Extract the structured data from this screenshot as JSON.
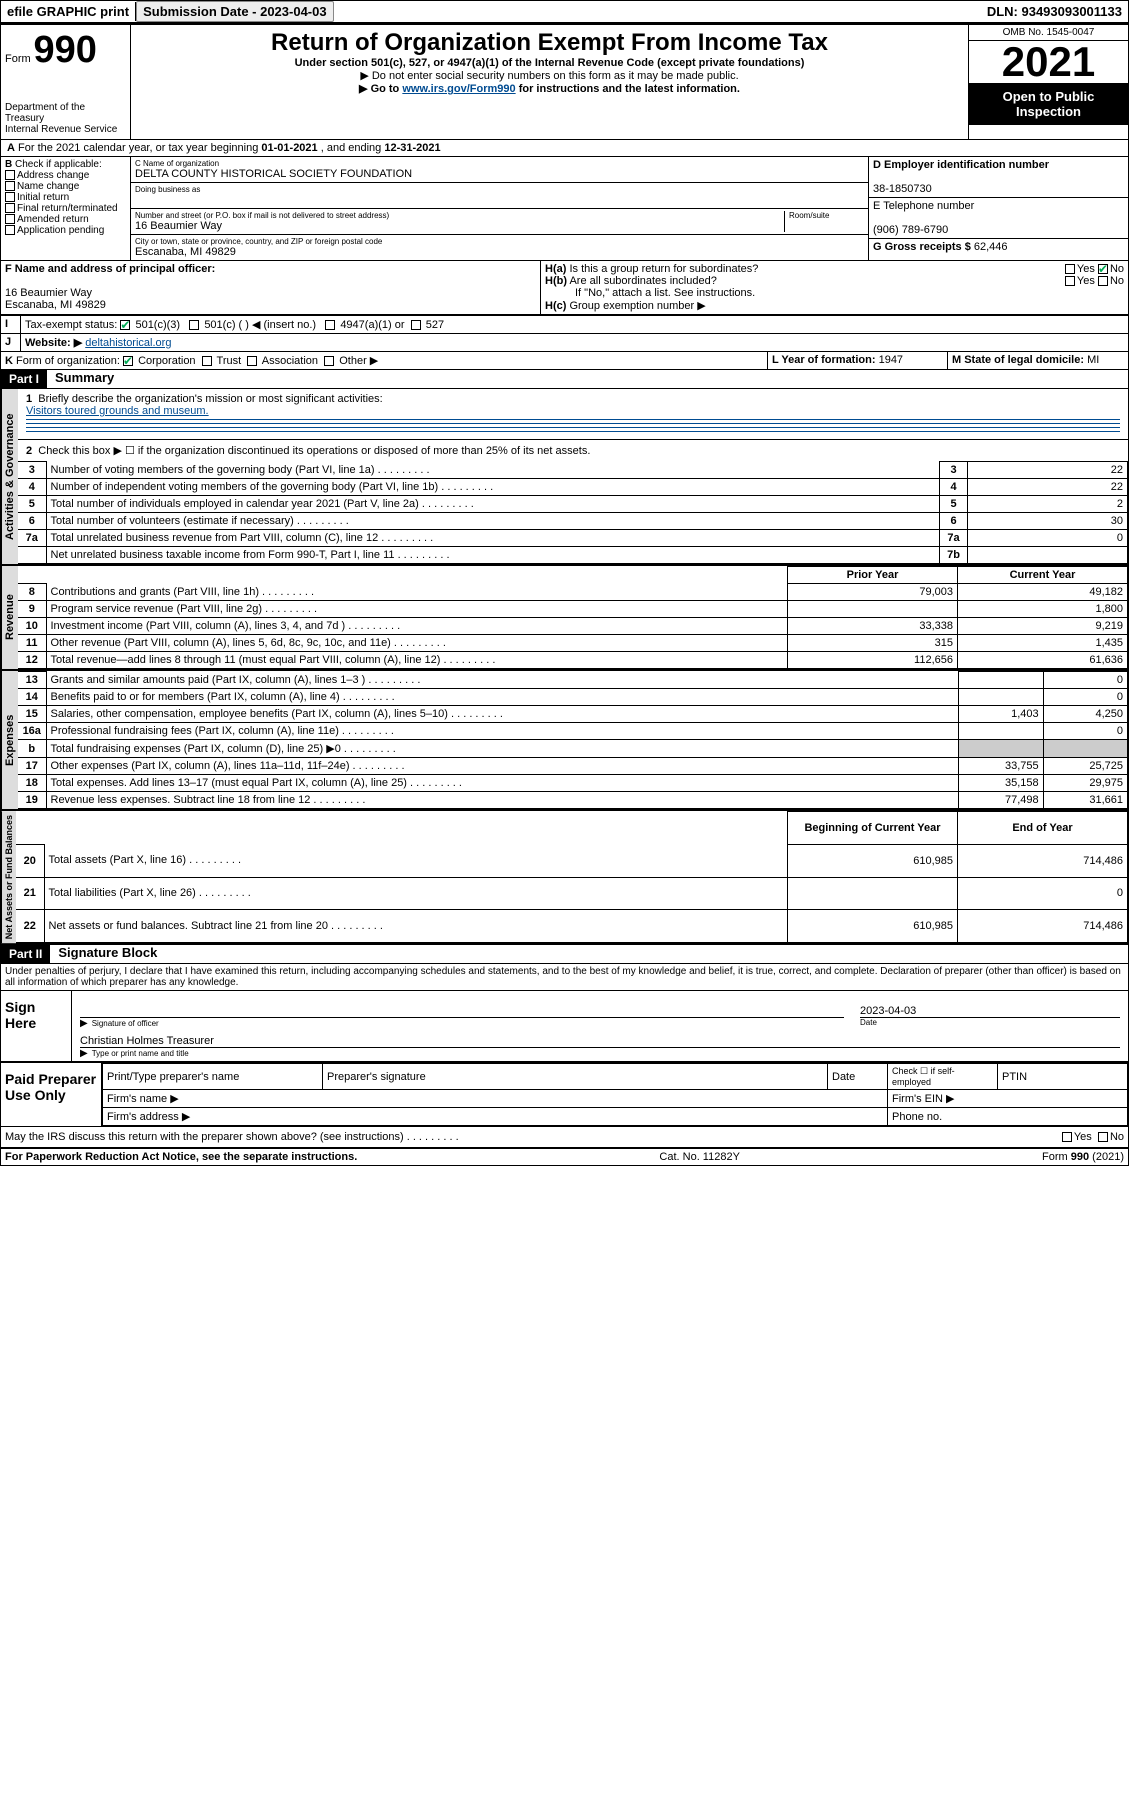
{
  "topbar": {
    "efile": "efile GRAPHIC print",
    "sub_label": "Submission Date - 2023-04-03",
    "dln": "DLN: 93493093001133"
  },
  "header": {
    "form_prefix": "Form",
    "form_no": "990",
    "dept": "Department of the Treasury",
    "irs": "Internal Revenue Service",
    "title": "Return of Organization Exempt From Income Tax",
    "subtitle": "Under section 501(c), 527, or 4947(a)(1) of the Internal Revenue Code (except private foundations)",
    "instr1": "▶ Do not enter social security numbers on this form as it may be made public.",
    "instr2_pre": "▶ Go to ",
    "instr2_link": "www.irs.gov/Form990",
    "instr2_post": " for instructions and the latest information.",
    "omb": "OMB No. 1545-0047",
    "year": "2021",
    "open": "Open to Public Inspection"
  },
  "rowA": {
    "text_pre": "For the 2021 calendar year, or tax year beginning ",
    "begin": "01-01-2021",
    "mid": " , and ending ",
    "end": "12-31-2021"
  },
  "boxB": {
    "label": "Check if applicable:",
    "opts": [
      "Address change",
      "Name change",
      "Initial return",
      "Final return/terminated",
      "Amended return",
      "Application pending"
    ]
  },
  "boxC": {
    "name_label": "C Name of organization",
    "name": "DELTA COUNTY HISTORICAL SOCIETY FOUNDATION",
    "dba_label": "Doing business as",
    "addr_label": "Number and street (or P.O. box if mail is not delivered to street address)",
    "room_label": "Room/suite",
    "street": "16 Beaumier Way",
    "city_label": "City or town, state or province, country, and ZIP or foreign postal code",
    "city": "Escanaba, MI  49829"
  },
  "boxDE": {
    "d_label": "D Employer identification number",
    "ein": "38-1850730",
    "e_label": "E Telephone number",
    "phone": "(906) 789-6790",
    "g_label": "G Gross receipts $",
    "gross": "62,446"
  },
  "rowF": {
    "label": "F Name and address of principal officer:",
    "addr1": "16 Beaumier Way",
    "addr2": "Escanaba, MI  49829"
  },
  "rowH": {
    "ha": "Is this a group return for subordinates?",
    "hb": "Are all subordinates included?",
    "hb_note": "If \"No,\" attach a list. See instructions.",
    "hc": "Group exemption number ▶",
    "yes": "Yes",
    "no": "No"
  },
  "rowI": {
    "label": "Tax-exempt status:",
    "opt1": "501(c)(3)",
    "opt2": "501(c) (  ) ◀ (insert no.)",
    "opt3": "4947(a)(1) or",
    "opt4": "527"
  },
  "rowJ": {
    "label": "Website: ▶",
    "val": "deltahistorical.org"
  },
  "rowK": {
    "label": "Form of organization:",
    "opts": [
      "Corporation",
      "Trust",
      "Association",
      "Other ▶"
    ]
  },
  "rowL": {
    "label": "L Year of formation:",
    "val": "1947"
  },
  "rowM": {
    "label": "M State of legal domicile:",
    "val": "MI"
  },
  "part1": {
    "header": "Part I",
    "title": "Summary",
    "line1_label": "Briefly describe the organization's mission or most significant activities:",
    "line1_val": "Visitors toured grounds and museum.",
    "line2": "Check this box ▶ ☐  if the organization discontinued its operations or disposed of more than 25% of its net assets.",
    "governance_label": "Activities & Governance",
    "revenue_label": "Revenue",
    "expenses_label": "Expenses",
    "netassets_label": "Net Assets or Fund Balances",
    "rows_top": [
      {
        "n": "3",
        "d": "Number of voting members of the governing body (Part VI, line 1a)",
        "box": "3",
        "v": "22"
      },
      {
        "n": "4",
        "d": "Number of independent voting members of the governing body (Part VI, line 1b)",
        "box": "4",
        "v": "22"
      },
      {
        "n": "5",
        "d": "Total number of individuals employed in calendar year 2021 (Part V, line 2a)",
        "box": "5",
        "v": "2"
      },
      {
        "n": "6",
        "d": "Total number of volunteers (estimate if necessary)",
        "box": "6",
        "v": "30"
      },
      {
        "n": "7a",
        "d": "Total unrelated business revenue from Part VIII, column (C), line 12",
        "box": "7a",
        "v": "0"
      },
      {
        "n": "",
        "d": "Net unrelated business taxable income from Form 990-T, Part I, line 11",
        "box": "7b",
        "v": ""
      }
    ],
    "col_prior": "Prior Year",
    "col_current": "Current Year",
    "rows_rev": [
      {
        "n": "8",
        "d": "Contributions and grants (Part VIII, line 1h)",
        "p": "79,003",
        "c": "49,182"
      },
      {
        "n": "9",
        "d": "Program service revenue (Part VIII, line 2g)",
        "p": "",
        "c": "1,800"
      },
      {
        "n": "10",
        "d": "Investment income (Part VIII, column (A), lines 3, 4, and 7d )",
        "p": "33,338",
        "c": "9,219"
      },
      {
        "n": "11",
        "d": "Other revenue (Part VIII, column (A), lines 5, 6d, 8c, 9c, 10c, and 11e)",
        "p": "315",
        "c": "1,435"
      },
      {
        "n": "12",
        "d": "Total revenue—add lines 8 through 11 (must equal Part VIII, column (A), line 12)",
        "p": "112,656",
        "c": "61,636"
      }
    ],
    "rows_exp": [
      {
        "n": "13",
        "d": "Grants and similar amounts paid (Part IX, column (A), lines 1–3 )",
        "p": "",
        "c": "0"
      },
      {
        "n": "14",
        "d": "Benefits paid to or for members (Part IX, column (A), line 4)",
        "p": "",
        "c": "0"
      },
      {
        "n": "15",
        "d": "Salaries, other compensation, employee benefits (Part IX, column (A), lines 5–10)",
        "p": "1,403",
        "c": "4,250"
      },
      {
        "n": "16a",
        "d": "Professional fundraising fees (Part IX, column (A), line 11e)",
        "p": "",
        "c": "0"
      },
      {
        "n": "b",
        "d": "Total fundraising expenses (Part IX, column (D), line 25) ▶0",
        "p": "shade",
        "c": "shade"
      },
      {
        "n": "17",
        "d": "Other expenses (Part IX, column (A), lines 11a–11d, 11f–24e)",
        "p": "33,755",
        "c": "25,725"
      },
      {
        "n": "18",
        "d": "Total expenses. Add lines 13–17 (must equal Part IX, column (A), line 25)",
        "p": "35,158",
        "c": "29,975"
      },
      {
        "n": "19",
        "d": "Revenue less expenses. Subtract line 18 from line 12",
        "p": "77,498",
        "c": "31,661"
      }
    ],
    "col_beg": "Beginning of Current Year",
    "col_end": "End of Year",
    "rows_net": [
      {
        "n": "20",
        "d": "Total assets (Part X, line 16)",
        "p": "610,985",
        "c": "714,486"
      },
      {
        "n": "21",
        "d": "Total liabilities (Part X, line 26)",
        "p": "",
        "c": "0"
      },
      {
        "n": "22",
        "d": "Net assets or fund balances. Subtract line 21 from line 20",
        "p": "610,985",
        "c": "714,486"
      }
    ]
  },
  "part2": {
    "header": "Part II",
    "title": "Signature Block",
    "decl": "Under penalties of perjury, I declare that I have examined this return, including accompanying schedules and statements, and to the best of my knowledge and belief, it is true, correct, and complete. Declaration of preparer (other than officer) is based on all information of which preparer has any knowledge.",
    "sign_here": "Sign Here",
    "sig_officer": "Signature of officer",
    "sig_date": "Date",
    "sig_date_val": "2023-04-03",
    "sig_name": "Christian Holmes  Treasurer",
    "sig_name_label": "Type or print name and title",
    "paid": "Paid Preparer Use Only",
    "prep_name": "Print/Type preparer's name",
    "prep_sig": "Preparer's signature",
    "prep_date": "Date",
    "prep_check": "Check ☐ if self-employed",
    "ptin": "PTIN",
    "firm_name": "Firm's name   ▶",
    "firm_ein": "Firm's EIN ▶",
    "firm_addr": "Firm's address ▶",
    "firm_phone": "Phone no.",
    "discuss": "May the IRS discuss this return with the preparer shown above? (see instructions)"
  },
  "footer": {
    "left": "For Paperwork Reduction Act Notice, see the separate instructions.",
    "mid": "Cat. No. 11282Y",
    "right": "Form 990 (2021)"
  }
}
